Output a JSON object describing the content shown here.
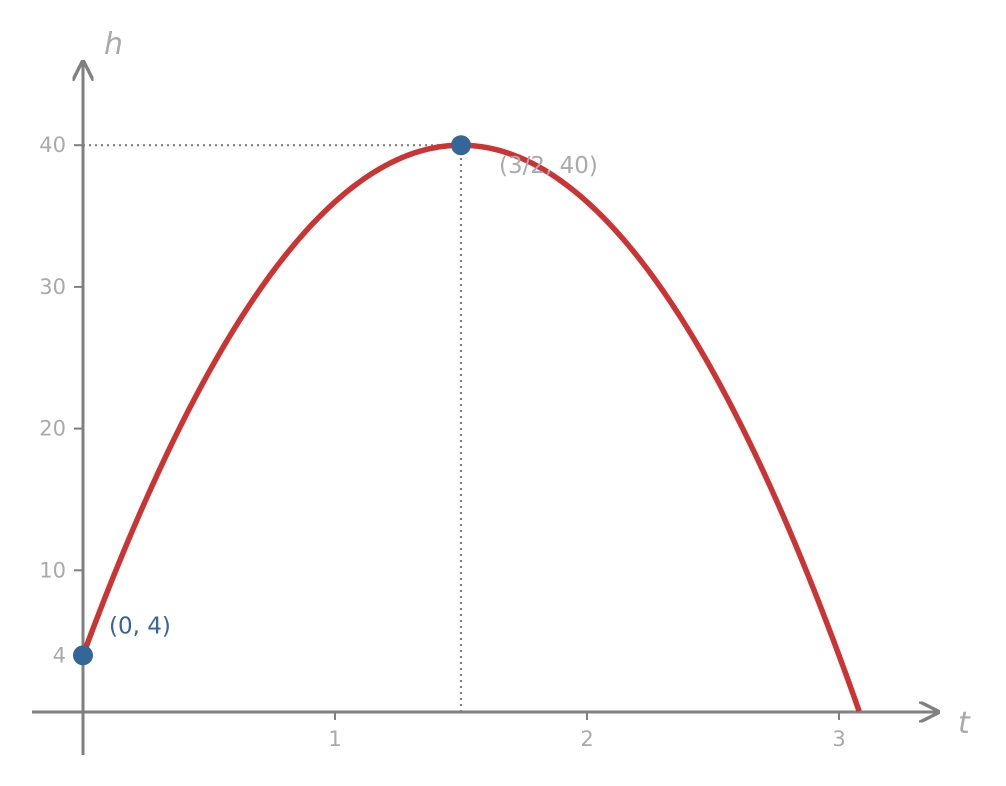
{
  "chart_data": {
    "type": "line",
    "xlabel": "t",
    "ylabel": "h",
    "xlim": [
      0,
      3.4
    ],
    "ylim": [
      0,
      45
    ],
    "x_ticks": [
      1,
      2,
      3
    ],
    "y_ticks": [
      4,
      10,
      20,
      30,
      40
    ],
    "grid": false,
    "series": [
      {
        "function": "h = -16t^2 + 48t + 4",
        "coefficients": {
          "a": -16,
          "b": 48,
          "c": 4
        },
        "domain": [
          0,
          3.08
        ],
        "color": "#cc3333"
      }
    ],
    "points": [
      {
        "x": 0,
        "y": 4,
        "label": "(0,  4)",
        "color": "#336699",
        "label_color": "#336699"
      },
      {
        "x": 1.5,
        "y": 40,
        "label": "(3/2,  40)",
        "color": "#336699",
        "label_color": "#aaaaaa"
      }
    ],
    "guides": [
      {
        "type": "horizontal",
        "y": 40,
        "from_x": 0,
        "to_x": 1.5
      },
      {
        "type": "vertical",
        "x": 1.5,
        "from_y": 0,
        "to_y": 40
      }
    ],
    "colors": {
      "axis": "#808080",
      "curve": "#cc3333",
      "point": "#336699",
      "tick_text": "#aaaaaa",
      "guide": "#808080"
    }
  }
}
